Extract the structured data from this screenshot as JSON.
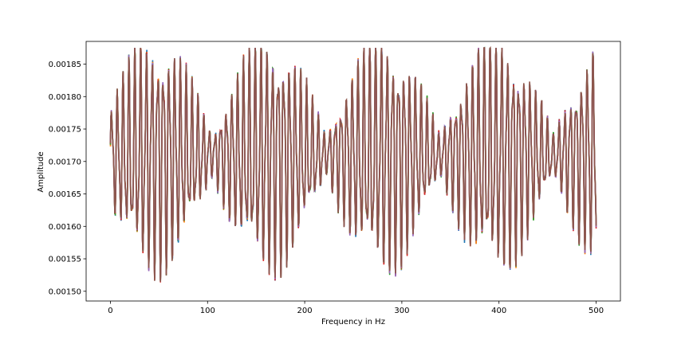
{
  "chart_data": {
    "type": "line",
    "title": "",
    "xlabel": "Frequency in Hz",
    "ylabel": "Amplitude",
    "xlim": [
      -25,
      525
    ],
    "ylim": [
      0.001485,
      0.001885
    ],
    "x_ticks": [
      0,
      100,
      200,
      300,
      400,
      500
    ],
    "x_tick_labels": [
      "0",
      "100",
      "200",
      "300",
      "400",
      "500"
    ],
    "y_ticks": [
      0.0015,
      0.00155,
      0.0016,
      0.00165,
      0.0017,
      0.00175,
      0.0018,
      0.00185
    ],
    "y_tick_labels": [
      "0.00150",
      "0.00155",
      "0.00160",
      "0.00165",
      "0.00170",
      "0.00175",
      "0.00180",
      "0.00185"
    ],
    "grid": false,
    "series_colors": [
      "#1f77b4",
      "#ff7f0e",
      "#2ca02c",
      "#d62728",
      "#9467bd",
      "#8c564b"
    ],
    "envelope": {
      "baseline": 0.00171,
      "x_range": [
        0,
        500
      ],
      "approx_envelope_peaks_x": [
        42,
        155,
        275,
        380,
        480
      ],
      "approx_envelope_nodes_x": [
        95,
        215,
        330,
        435
      ],
      "max_value": 0.001875,
      "min_value": 0.001505
    }
  }
}
